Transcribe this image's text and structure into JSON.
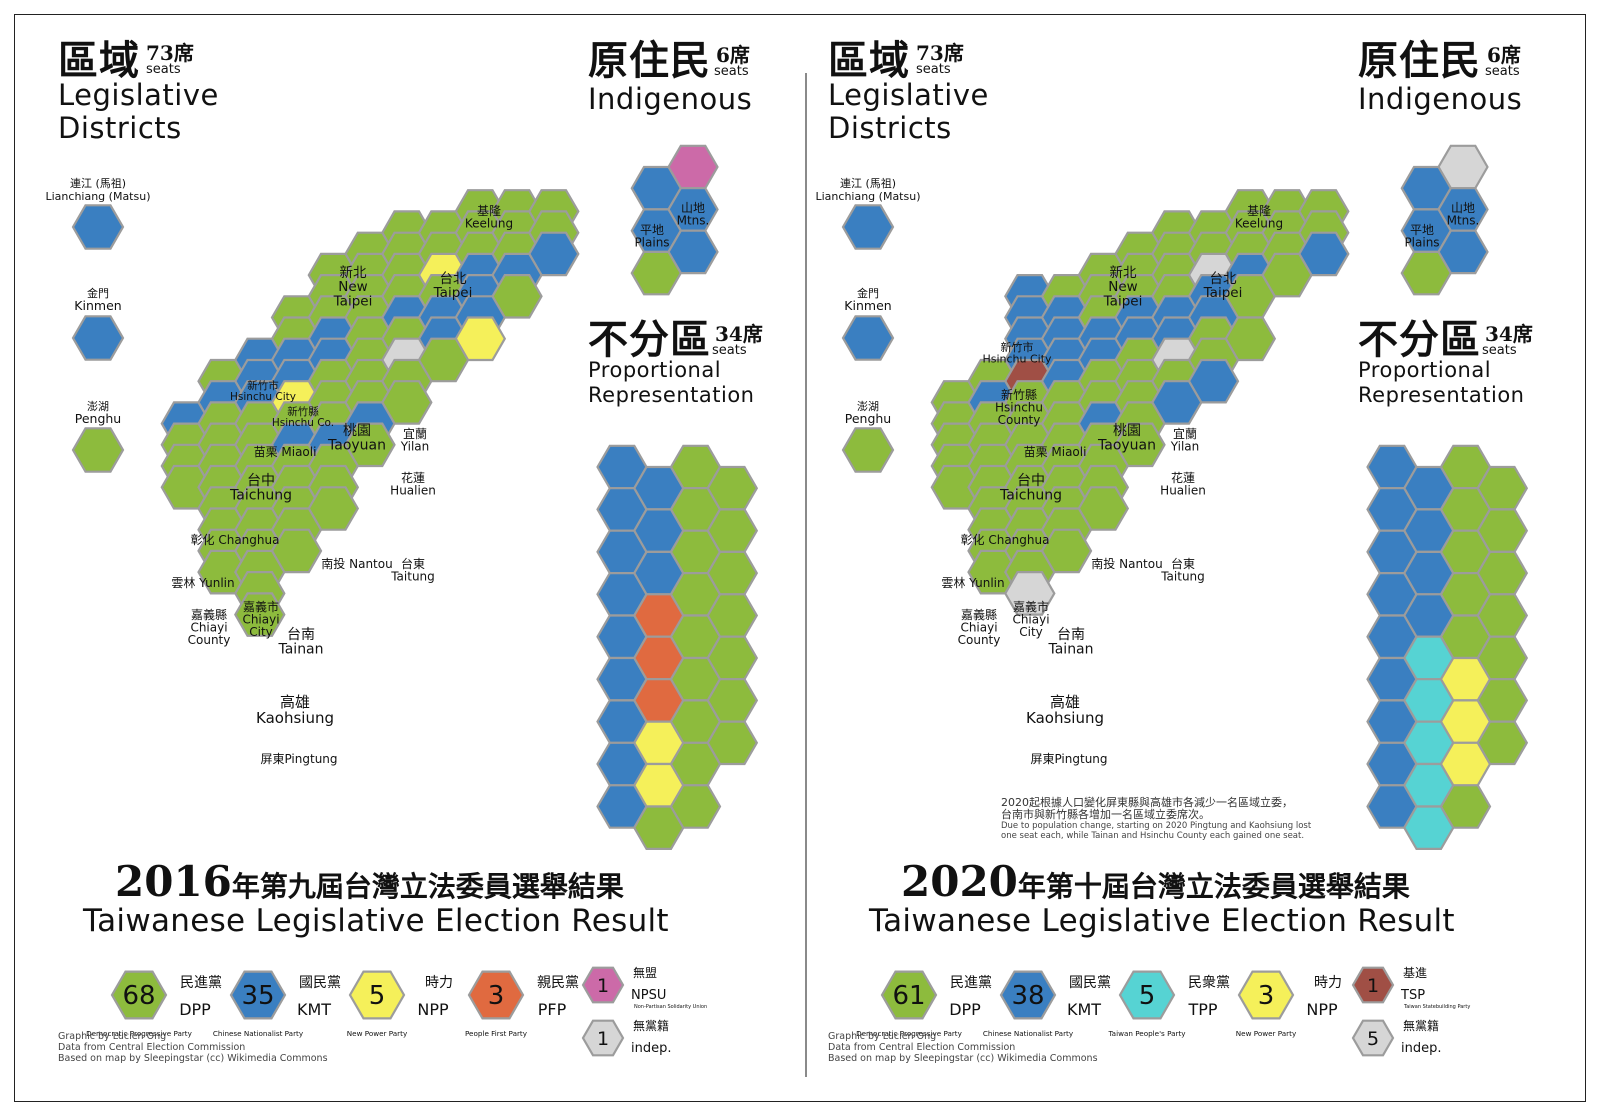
{
  "colors": {
    "DPP": "#8dbb3d",
    "KMT": "#3a7fc1",
    "NPP": "#f5f05a",
    "PFP": "#e06a40",
    "NPSU": "#cc6aa8",
    "TPP": "#56d3d3",
    "TSP": "#a04f45",
    "indep": "#d6d6d6",
    "border": "#9c9c9c"
  },
  "common": {
    "district_cjk": "區域",
    "district_seats_num": "73席",
    "district_en_1": "Legislative",
    "district_en_2": "Districts",
    "indig_cjk": "原住民",
    "indig_seats_num": "6席",
    "indig_en": "Indigenous",
    "pr_cjk": "不分區",
    "pr_seats_num": "34席",
    "pr_en_1": "Proportional",
    "pr_en_2": "Representation",
    "seats_word": "seats",
    "islands": {
      "lianchiang_cjk": "連江 (馬祖)",
      "lianchiang_en": "Lianchiang (Matsu)",
      "kinmen_cjk": "金門",
      "kinmen_en": "Kinmen",
      "penghu_cjk": "澎湖",
      "penghu_en": "Penghu"
    },
    "indig_labels": {
      "mtns_cjk": "山地",
      "mtns_en": "Mtns.",
      "plains_cjk": "平地",
      "plains_en": "Plains"
    },
    "credits": [
      "Graphic by Lucien Ong",
      "Data from Central Election Commission",
      "Based on map by Sleepingstar (cc) Wikimedia Commons"
    ]
  },
  "map_labels": {
    "keelung": [
      "基隆",
      "Keelung"
    ],
    "new_taipei": [
      "新北",
      "New",
      "Taipei"
    ],
    "taipei": [
      "台北",
      "Taipei"
    ],
    "hsinchu_city": [
      "新竹市",
      "Hsinchu City"
    ],
    "hsinchu_county_2016": [
      "新竹縣",
      "Hsinchu Co."
    ],
    "hsinchu_county_2020": [
      "新竹縣",
      "Hsinchu",
      "County"
    ],
    "taoyuan": [
      "桃園",
      "Taoyuan"
    ],
    "yilan": [
      "宜蘭",
      "Yilan"
    ],
    "miaoli": [
      "苗栗 Miaoli"
    ],
    "taichung": [
      "台中",
      "Taichung"
    ],
    "hualien": [
      "花蓮",
      "Hualien"
    ],
    "changhua": [
      "彰化 Changhua"
    ],
    "nantou": [
      "南投 Nantou"
    ],
    "taitung": [
      "台東",
      "Taitung"
    ],
    "yunlin": [
      "雲林 Yunlin"
    ],
    "chiayi_city": [
      "嘉義市",
      "Chiayi",
      "City"
    ],
    "chiayi_county": [
      "嘉義縣",
      "Chiayi",
      "County"
    ],
    "tainan": [
      "台南",
      "Tainan"
    ],
    "kaohsiung": [
      "高雄",
      "Kaohsiung"
    ],
    "pingtung": [
      "屏東Pingtung"
    ]
  },
  "elections": [
    {
      "year": "2016",
      "title_cjk_rest": "年第九屆台灣立法委員選舉結果",
      "title_en": "Taiwanese Legislative Election Result",
      "islands": {
        "lianchiang": "KMT",
        "kinmen": "KMT",
        "penghu": "DPP"
      },
      "indigenous": [
        "NPSU",
        "KMT",
        "KMT",
        "KMT",
        "KMT",
        "DPP"
      ],
      "pr_columns": [
        [
          "KMT",
          "KMT",
          "KMT",
          "KMT",
          "KMT",
          "KMT",
          "KMT",
          "KMT",
          "KMT"
        ],
        [
          "KMT",
          "KMT",
          "KMT",
          "PFP",
          "PFP",
          "PFP",
          "NPP",
          "NPP",
          "DPP"
        ],
        [
          "DPP",
          "DPP",
          "DPP",
          "DPP",
          "DPP",
          "DPP",
          "DPP",
          "DPP",
          "DPP"
        ],
        [
          "DPP",
          "DPP",
          "DPP",
          "DPP",
          "DPP",
          "DPP",
          "DPP"
        ]
      ],
      "district_map": [
        "7,2:DPP 8,2:DPP 9,2:DPP",
        "5,3:DPP 6,3:DPP 7,3:DPP 8,3:DPP 9,3:DPP",
        "4,4:DPP 5,4:DPP 6,4:DPP 7,4:DPP 8,4:DPP 9,4:KMT",
        "3,5:DPP 4,5:DPP 5,5:DPP 6,5:NPP 7,5:KMT 8,5:KMT",
        "3,6:DPP 4,6:DPP 5,6:DPP 6,6:DPP 7,6:KMT 8,6:DPP",
        "2,7:DPP 3,7:DPP 4,7:DPP 5,7:KMT 6,7:KMT 7,7:KMT",
        "2,8:DPP 3,8:KMT 4,8:DPP 5,8:DPP 6,8:KMT 7,8:NPP",
        "1,9:KMT 2,9:KMT 3,9:KMT 4,9:DPP 5,9:indep 6,9:DPP",
        "0,10:DPP 1,10:KMT 2,10:KMT 3,10:DPP 4,10:DPP 5,10:DPP",
        "0,11:KMT 1,11:KMT 2,11:NPP 3,11:DPP 4,11:DPP 5,11:DPP",
        "-1,12:KMT 0,12:DPP 1,12:DPP 2,12:DPP 3,12:DPP 4,12:KMT",
        "-1,13:DPP 0,13:DPP 1,13:DPP 2,13:KMT 3,13:KMT 4,13:DPP",
        "-1,14:DPP 0,14:DPP 1,14:DPP 2,14:DPP 3,14:DPP",
        "-1,15:DPP 0,15:DPP 1,15:DPP 2,15:DPP 3,15:DPP",
        "0,16:DPP 1,16:DPP 2,16:DPP 3,16:DPP",
        "0,17:DPP 1,17:DPP 2,17:DPP",
        "0,18:DPP 1,18:DPP 2,18:DPP",
        "0,19:DPP 1,19:DPP",
        "1,20:DPP",
        "1,21:DPP"
      ],
      "legend": [
        {
          "num": "68",
          "party": "DPP",
          "cjk": "民進黨",
          "abbr": "DPP",
          "full": "Democratic Progressive Party"
        },
        {
          "num": "35",
          "party": "KMT",
          "cjk": "國民黨",
          "abbr": "KMT",
          "full": "Chinese Nationalist Party"
        },
        {
          "num": "5",
          "party": "NPP",
          "cjk": "時力",
          "abbr": "NPP",
          "full": "New Power Party"
        },
        {
          "num": "3",
          "party": "PFP",
          "cjk": "親民黨",
          "abbr": "PFP",
          "full": "People First Party"
        }
      ],
      "legend_small": [
        {
          "num": "1",
          "party": "NPSU",
          "cjk": "無盟",
          "abbr": "NPSU",
          "full": "Non-Partisan Solidarity Union"
        },
        {
          "num": "1",
          "party": "indep",
          "cjk": "無黨籍",
          "abbr": "indep."
        }
      ]
    },
    {
      "year": "2020",
      "title_cjk_rest": "年第十屆台灣立法委員選舉結果",
      "title_en": "Taiwanese Legislative Election Result",
      "islands": {
        "lianchiang": "KMT",
        "kinmen": "KMT",
        "penghu": "DPP"
      },
      "indigenous": [
        "indep",
        "KMT",
        "KMT",
        "KMT",
        "KMT",
        "DPP"
      ],
      "pr_columns": [
        [
          "KMT",
          "KMT",
          "KMT",
          "KMT",
          "KMT",
          "KMT",
          "KMT",
          "KMT",
          "KMT"
        ],
        [
          "KMT",
          "KMT",
          "KMT",
          "KMT",
          "TPP",
          "TPP",
          "TPP",
          "TPP",
          "TPP"
        ],
        [
          "DPP",
          "DPP",
          "DPP",
          "DPP",
          "DPP",
          "NPP",
          "NPP",
          "NPP",
          "DPP"
        ],
        [
          "DPP",
          "DPP",
          "DPP",
          "DPP",
          "DPP",
          "DPP",
          "DPP"
        ]
      ],
      "district_map": [
        "7,2:DPP 8,2:DPP 9,2:DPP",
        "5,3:DPP 6,3:DPP 7,3:DPP 8,3:DPP 9,3:DPP",
        "4,4:DPP 5,4:DPP 6,4:DPP 7,4:DPP 8,4:DPP 9,4:KMT",
        "3,5:DPP 4,5:DPP 5,5:DPP 6,5:indep 7,5:KMT 8,5:DPP",
        "1,6:KMT 2,6:DPP 3,6:DPP 4,6:DPP 5,6:DPP 6,6:KMT 7,6:DPP",
        "1,7:KMT 2,7:KMT 3,7:DPP 4,7:KMT 5,7:KMT 6,7:KMT",
        "1,8:KMT 2,8:KMT 3,8:KMT 4,8:KMT 5,8:KMT 6,8:DPP 7,8:DPP",
        "1,9:KMT 2,9:KMT 3,9:KMT 4,9:DPP 5,9:indep 6,9:DPP",
        "0,10:DPP 1,10:TSP 2,10:KMT 3,10:DPP 4,10:DPP 5,10:DPP 6,10:KMT",
        "-1,11:DPP 0,11:KMT 1,11:DPP 2,11:DPP 3,11:DPP 4,11:DPP 5,11:KMT",
        "-1,12:DPP 0,12:DPP 1,12:DPP 2,12:DPP 3,12:KMT 4,12:DPP",
        "-1,13:DPP 0,13:DPP 1,13:DPP 2,13:DPP 3,13:DPP 4,13:DPP",
        "-1,14:DPP 0,14:DPP 1,14:DPP 2,14:DPP 3,14:DPP",
        "-1,15:DPP 0,15:DPP 1,15:DPP 2,15:DPP 3,15:DPP",
        "0,16:DPP 1,16:DPP 2,16:DPP 3,16:DPP",
        "0,17:DPP 1,17:DPP 2,17:DPP",
        "0,18:DPP 1,18:DPP 2,18:DPP",
        "0,19:DPP 1,19:DPP",
        "1,20:indep"
      ],
      "note_cjk_1": "2020起根據人口變化屏東縣與高雄市各減少一名區域立委，",
      "note_cjk_2": "台南市與新竹縣各增加一名區域立委席次。",
      "note_en_1": "Due to population change, starting on 2020 Pingtung and Kaohsiung lost",
      "note_en_2": "one seat each, while Tainan and Hsinchu County each gained one seat.",
      "legend": [
        {
          "num": "61",
          "party": "DPP",
          "cjk": "民進黨",
          "abbr": "DPP",
          "full": "Democratic Progressive Party"
        },
        {
          "num": "38",
          "party": "KMT",
          "cjk": "國民黨",
          "abbr": "KMT",
          "full": "Chinese Nationalist Party"
        },
        {
          "num": "5",
          "party": "TPP",
          "cjk": "民衆黨",
          "abbr": "TPP",
          "full": "Taiwan People's Party"
        },
        {
          "num": "3",
          "party": "NPP",
          "cjk": "時力",
          "abbr": "NPP",
          "full": "New Power Party"
        }
      ],
      "legend_small": [
        {
          "num": "1",
          "party": "TSP",
          "cjk": "基進",
          "abbr": "TSP",
          "full": "Taiwan Statebuilding Party"
        },
        {
          "num": "5",
          "party": "indep",
          "cjk": "無黨籍",
          "abbr": "indep."
        }
      ]
    }
  ]
}
